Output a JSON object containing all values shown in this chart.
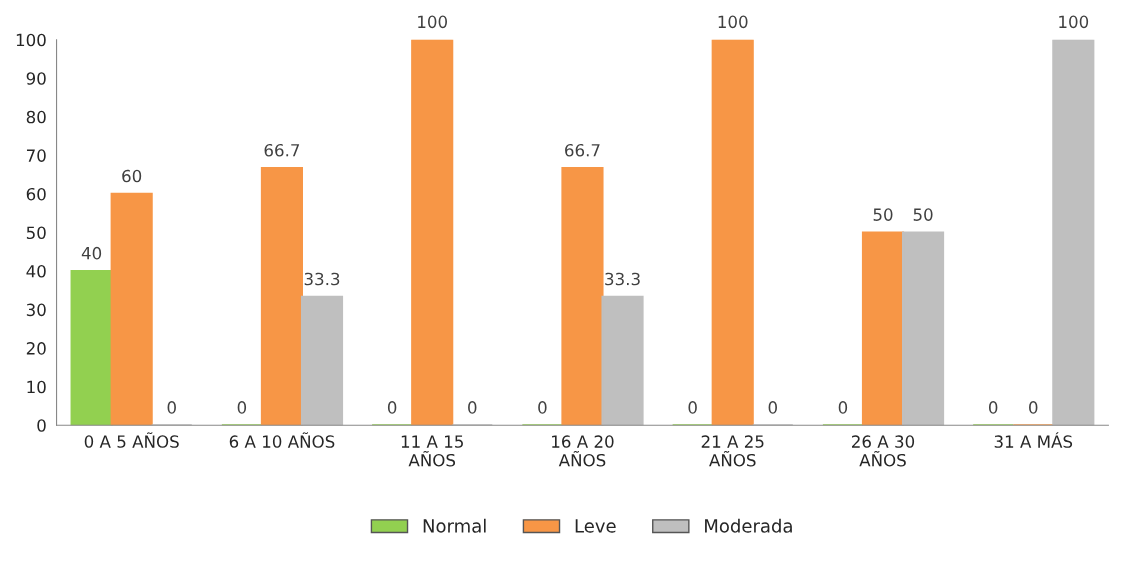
{
  "chart_data": {
    "type": "bar",
    "categories": [
      "0 A 5 AÑOS",
      "6 A 10 AÑOS",
      "11 A 15 AÑOS",
      "16 A 20 AÑOS",
      "21 A 25 AÑOS",
      "26 A 30 AÑOS",
      "31 A MÁS"
    ],
    "series": [
      {
        "name": "Normal",
        "color": "#92d050",
        "values": [
          40,
          0,
          0,
          0,
          0,
          0,
          0
        ]
      },
      {
        "name": "Leve",
        "color": "#f79646",
        "values": [
          60,
          66.7,
          100,
          66.7,
          100,
          50,
          0
        ]
      },
      {
        "name": "Moderada",
        "color": "#bfbfbf",
        "values": [
          0,
          33.3,
          0,
          33.3,
          0,
          50,
          100
        ]
      }
    ],
    "ylim": [
      0,
      100
    ],
    "yticks": [
      0,
      10,
      20,
      30,
      40,
      50,
      60,
      70,
      80,
      90,
      100
    ],
    "grid": false,
    "data_labels": true,
    "legend": "bottom"
  }
}
